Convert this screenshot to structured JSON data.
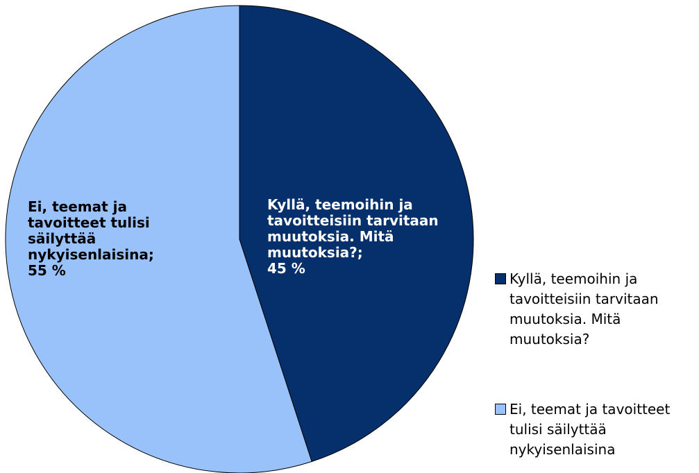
{
  "chart_data": {
    "type": "pie",
    "categories": [
      "Kyllä, teemoihin ja tavoitteisiin tarvitaan muutoksia. Mitä muutoksia?",
      "Ei, teemat ja tavoitteet tulisi säilyttää nykyisenlaisina"
    ],
    "data_labels": [
      "Kyllä, teemoihin ja tavoitteisiin tarvitaan muutoksia. Mitä muutoksia?;",
      "Ei, teemat ja tavoitteet tulisi säilyttää nykyisenlaisina;"
    ],
    "values": [
      45,
      55
    ],
    "value_labels": [
      "45 %",
      "55 %"
    ],
    "colors": [
      "#05306b",
      "#99c2fb"
    ],
    "label_colors": [
      "#ffffff",
      "#000000"
    ],
    "legend": "right"
  }
}
